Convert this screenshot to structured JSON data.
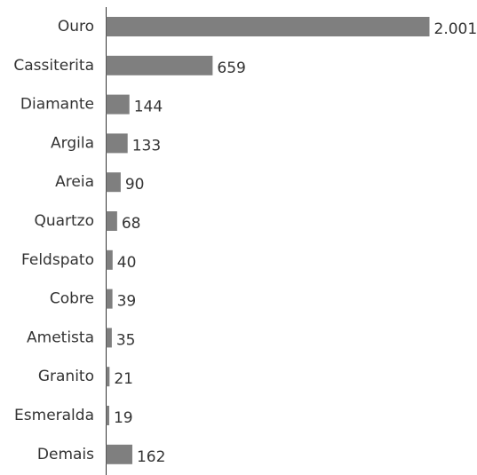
{
  "chart_data": {
    "type": "bar",
    "orientation": "horizontal",
    "categories": [
      "Ouro",
      "Cassiterita",
      "Diamante",
      "Argila",
      "Areia",
      "Quartzo",
      "Feldspato",
      "Cobre",
      "Ametista",
      "Granito",
      "Esmeralda",
      "Demais"
    ],
    "values": [
      2001,
      659,
      144,
      133,
      90,
      68,
      40,
      39,
      35,
      21,
      19,
      162
    ],
    "value_labels": [
      "2.001",
      "659",
      "144",
      "133",
      "90",
      "68",
      "40",
      "39",
      "35",
      "21",
      "19",
      "162"
    ],
    "color": "#7f7f7f"
  }
}
